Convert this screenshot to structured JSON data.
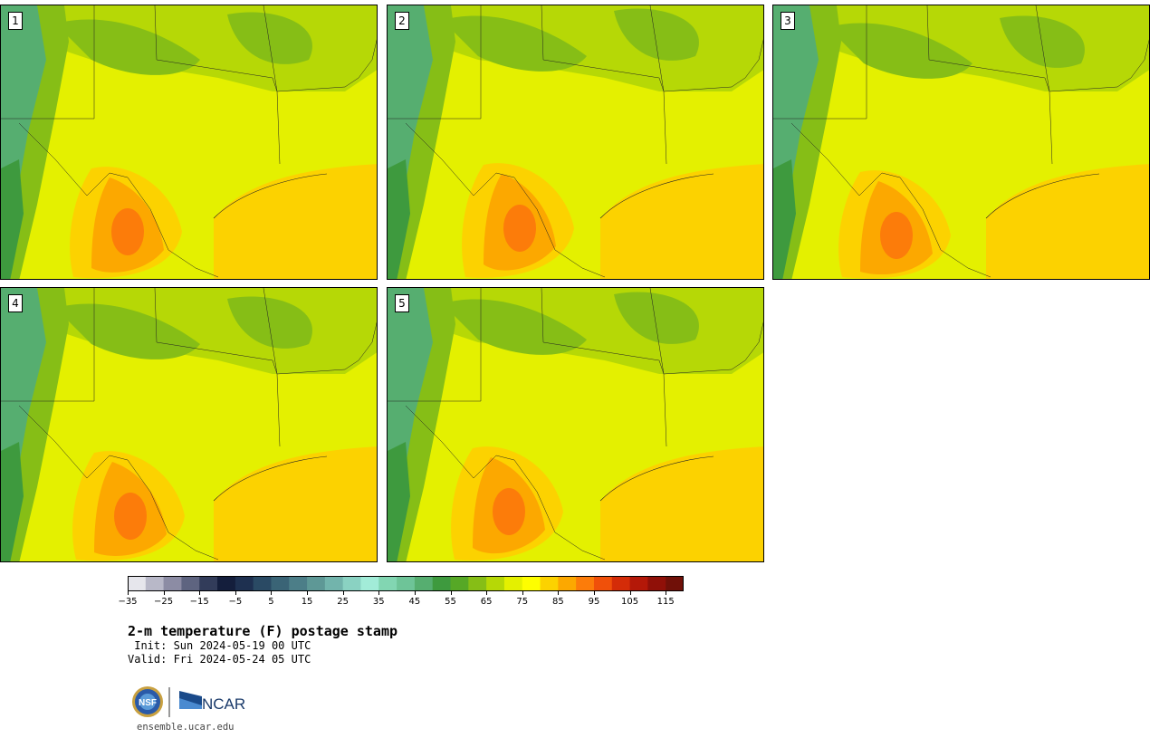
{
  "panels": [
    {
      "label": "1"
    },
    {
      "label": "2"
    },
    {
      "label": "3"
    },
    {
      "label": "4"
    },
    {
      "label": "5"
    }
  ],
  "colorbar": {
    "colors": [
      "#e6e6ec",
      "#b8b8c8",
      "#8c8ca4",
      "#5e6480",
      "#323c5a",
      "#141e3c",
      "#1e3050",
      "#2a4a64",
      "#3a6476",
      "#4c7e88",
      "#5e9896",
      "#72b4ac",
      "#8ad2c2",
      "#a2ecd8",
      "#82d6b2",
      "#6ec498",
      "#56ae70",
      "#3e9a3e",
      "#56a826",
      "#86be16",
      "#b6d806",
      "#e4f000",
      "#fefe00",
      "#fcd200",
      "#fca800",
      "#fc7c0a",
      "#f0500a",
      "#d42c08",
      "#b41808",
      "#901008",
      "#701008"
    ],
    "tick_labels": [
      "−35",
      "−25",
      "−15",
      "−5",
      "5",
      "15",
      "25",
      "35",
      "45",
      "55",
      "65",
      "75",
      "85",
      "95",
      "105",
      "115"
    ]
  },
  "title": "2-m temperature (F) postage stamp",
  "init": " Init: Sun 2024-05-19 00 UTC",
  "valid": "Valid: Fri 2024-05-24 05 UTC",
  "logos": {
    "nsf": "NSF",
    "ncar": "NCAR"
  },
  "site": "ensemble.ucar.edu"
}
